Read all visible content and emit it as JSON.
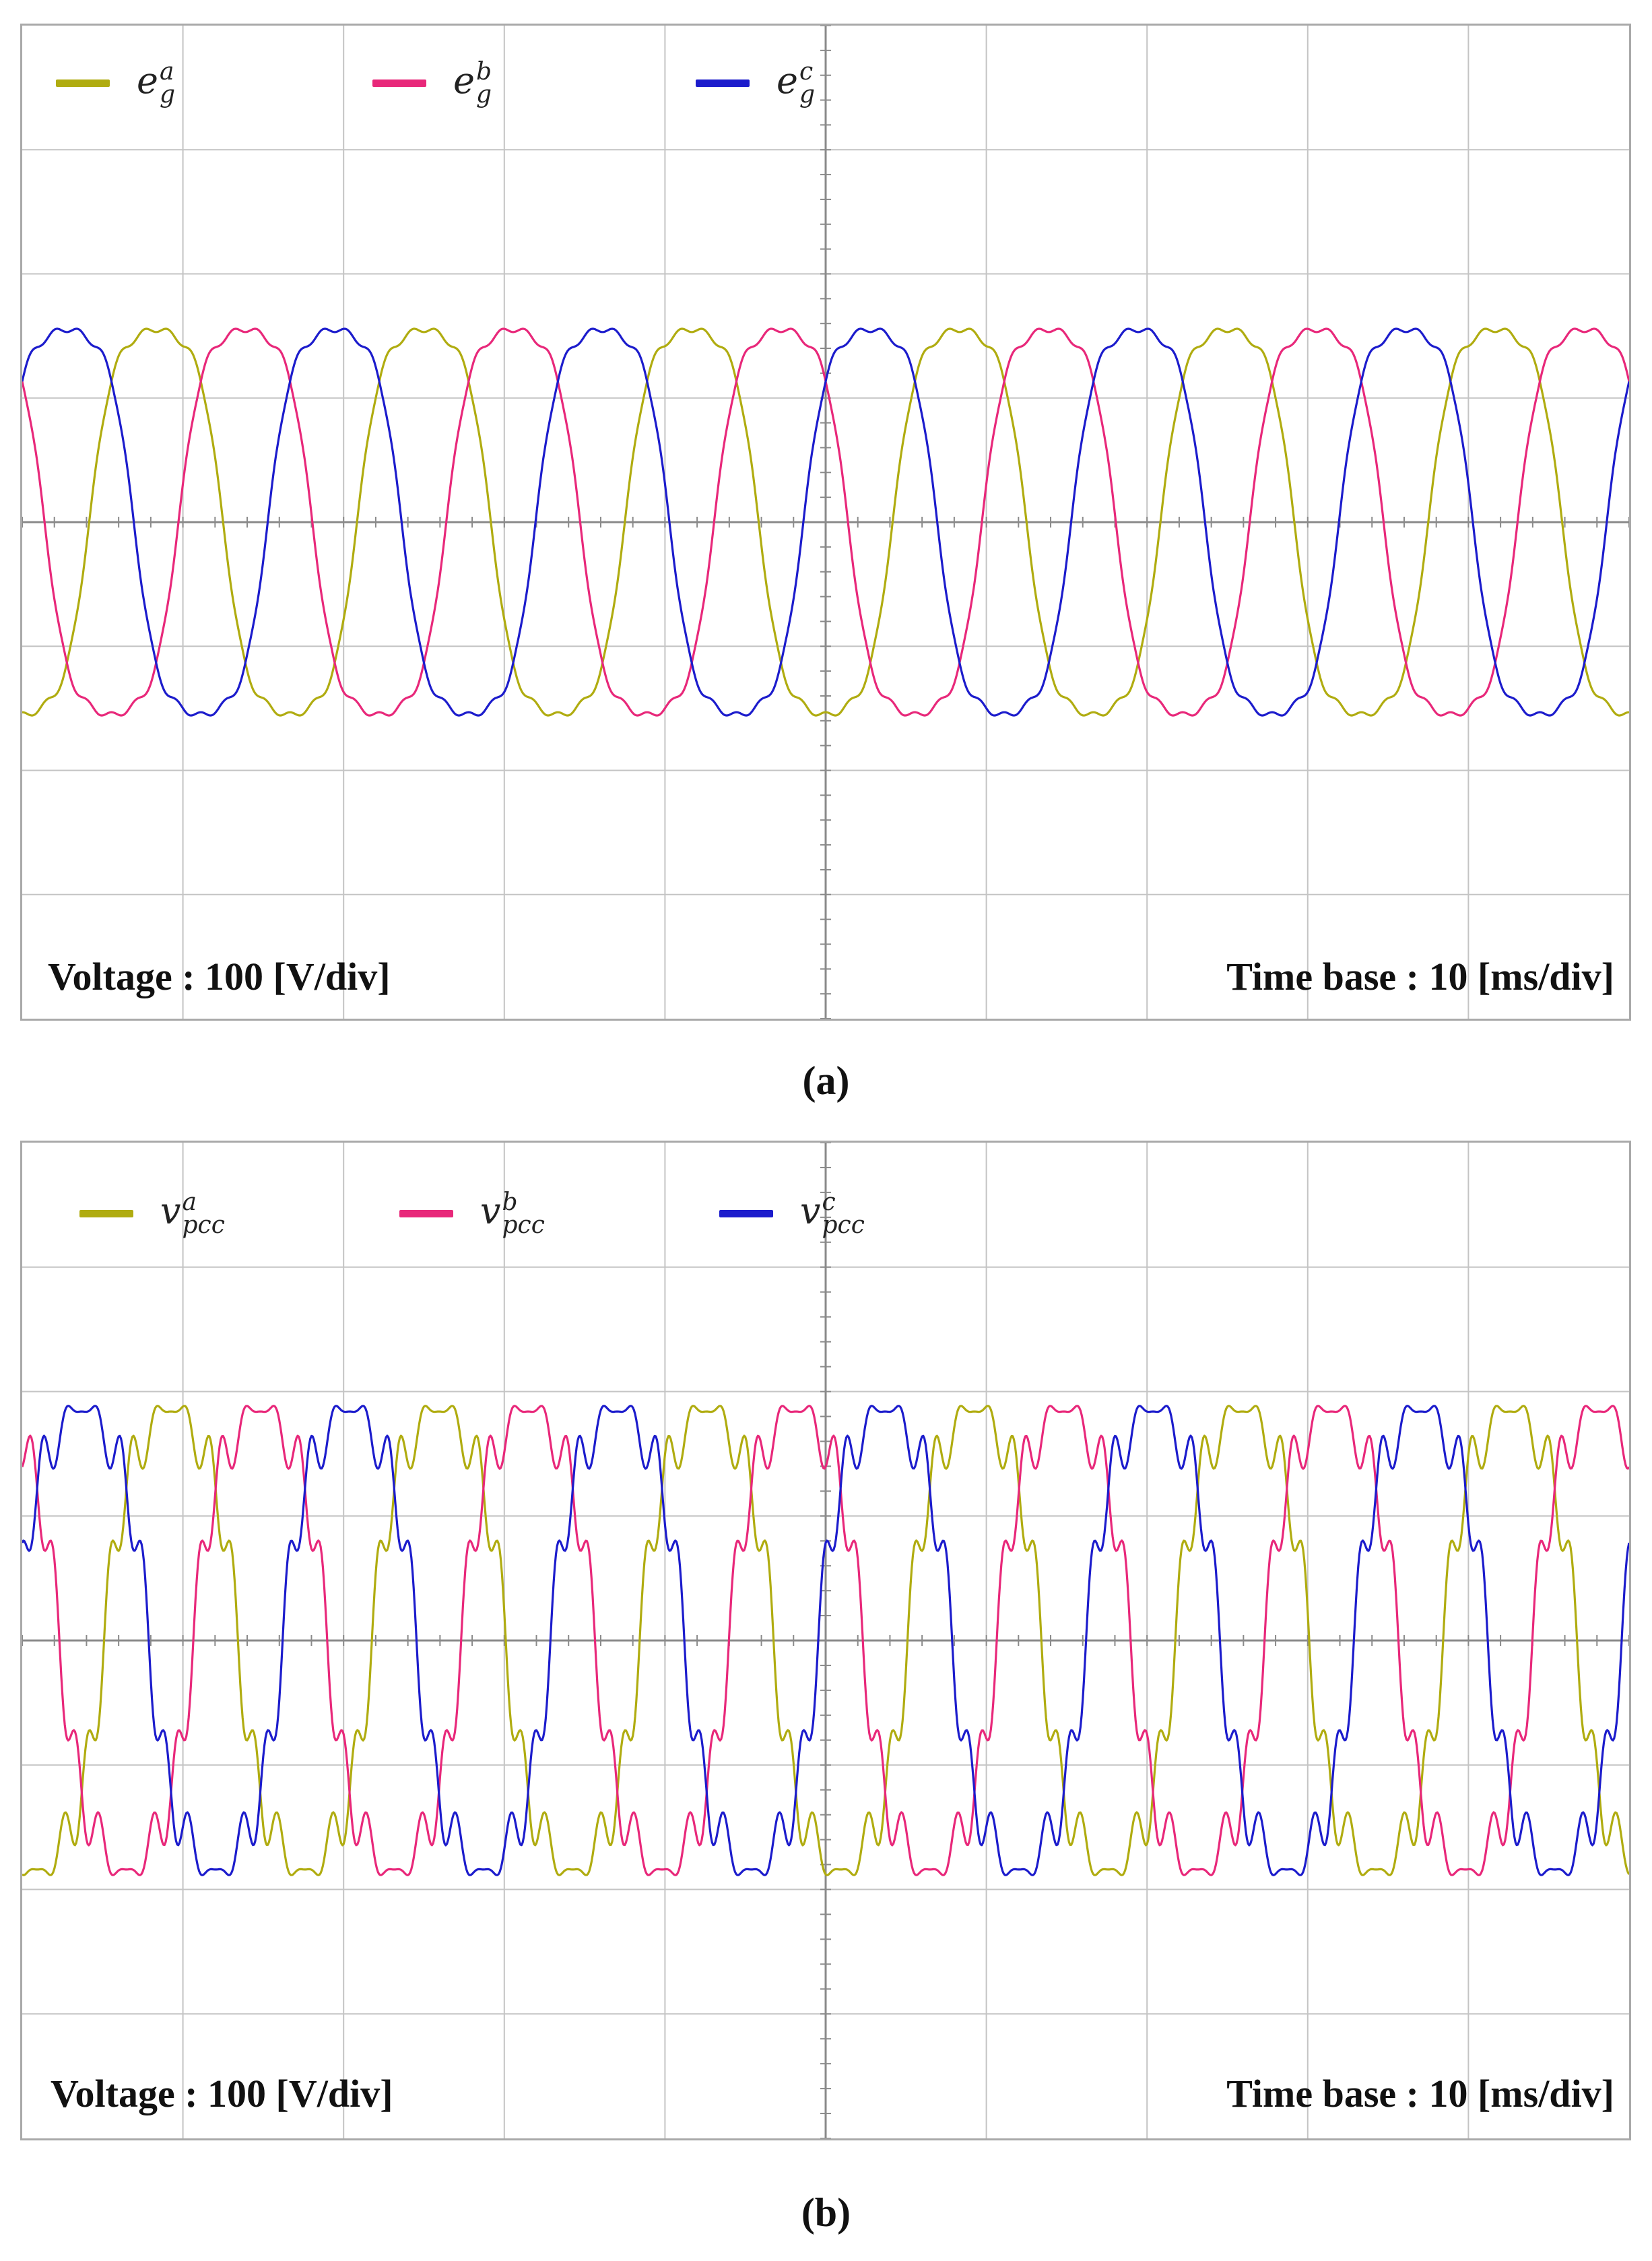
{
  "colors": {
    "phase_a": "#b0ac10",
    "phase_b": "#e8287a",
    "phase_c": "#1c1ccc",
    "grid": "#c4c4c4",
    "axis": "#8a8a8a",
    "frame": "#a9a9a9"
  },
  "chart_data": [
    {
      "type": "line",
      "panel_label": "(a)",
      "legend": [
        {
          "base": "e",
          "sub": "g",
          "sup": "a",
          "color": "#b0ac10"
        },
        {
          "base": "e",
          "sub": "g",
          "sup": "b",
          "color": "#e8287a"
        },
        {
          "base": "e",
          "sub": "g",
          "sup": "c",
          "color": "#1c1ccc"
        }
      ],
      "voltage_note": "Voltage : 100 [V/div]",
      "timebase_note": "Time base : 10 [ms/div]",
      "x_divisions": 10,
      "y_divisions": 8,
      "volts_per_div": 100,
      "ms_per_div": 10,
      "x_range_ms": [
        0,
        100
      ],
      "y_range_v": [
        -400,
        400
      ],
      "grid": true,
      "series": [
        {
          "phase": "a",
          "amplitude_v": 175,
          "frequency_hz": 60,
          "phase_deg": -90
        },
        {
          "phase": "b",
          "amplitude_v": 175,
          "frequency_hz": 60,
          "phase_deg": -210
        },
        {
          "phase": "c",
          "amplitude_v": 175,
          "frequency_hz": 60,
          "phase_deg": 30
        }
      ]
    },
    {
      "type": "line",
      "panel_label": "(b)",
      "legend": [
        {
          "base": "v",
          "sub": "pcc",
          "sup": "a",
          "color": "#b0ac10"
        },
        {
          "base": "v",
          "sub": "pcc",
          "sup": "b",
          "color": "#e8287a"
        },
        {
          "base": "v",
          "sub": "pcc",
          "sup": "c",
          "color": "#1c1ccc"
        }
      ],
      "voltage_note": "Voltage : 100 [V/div]",
      "timebase_note": "Time base : 10 [ms/div]",
      "x_divisions": 10,
      "y_divisions": 8,
      "volts_per_div": 100,
      "ms_per_div": 10,
      "x_range_ms": [
        0,
        100
      ],
      "y_range_v": [
        -400,
        400
      ],
      "grid": true,
      "series": [
        {
          "phase": "a",
          "amplitude_v": 200,
          "frequency_hz": 60,
          "phase_deg": -110
        },
        {
          "phase": "b",
          "amplitude_v": 200,
          "frequency_hz": 60,
          "phase_deg": -230
        },
        {
          "phase": "c",
          "amplitude_v": 200,
          "frequency_hz": 60,
          "phase_deg": 10
        }
      ]
    }
  ]
}
